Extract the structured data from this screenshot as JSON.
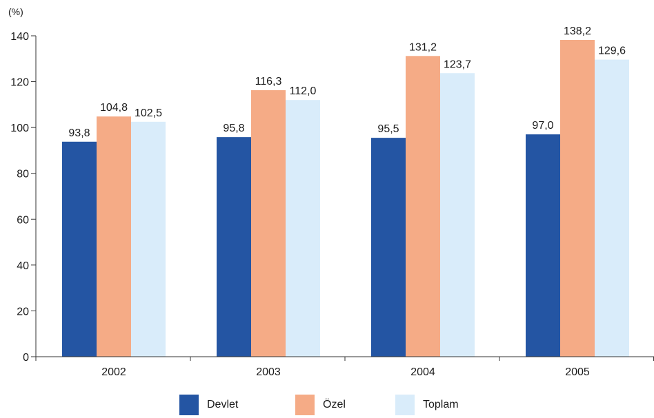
{
  "chart_data": {
    "type": "bar",
    "unit_label": "(%)",
    "categories": [
      "2002",
      "2003",
      "2004",
      "2005"
    ],
    "series": [
      {
        "name": "Devlet",
        "color": "#2455a3",
        "values": [
          93.8,
          95.8,
          95.5,
          97.0
        ],
        "labels": [
          "93,8",
          "95,8",
          "95,5",
          "97,0"
        ]
      },
      {
        "name": "Özel",
        "color": "#f5ab86",
        "values": [
          104.8,
          116.3,
          131.2,
          138.2
        ],
        "labels": [
          "104,8",
          "116,3",
          "131,2",
          "138,2"
        ]
      },
      {
        "name": "Toplam",
        "color": "#d9ecfa",
        "values": [
          102.5,
          112.0,
          123.7,
          129.6
        ],
        "labels": [
          "102,5",
          "112,0",
          "123,7",
          "129,6"
        ]
      }
    ],
    "yticks": [
      0,
      20,
      40,
      60,
      80,
      100,
      120,
      140
    ],
    "ylim": [
      0,
      140
    ],
    "grid": false,
    "legend_position": "bottom"
  }
}
